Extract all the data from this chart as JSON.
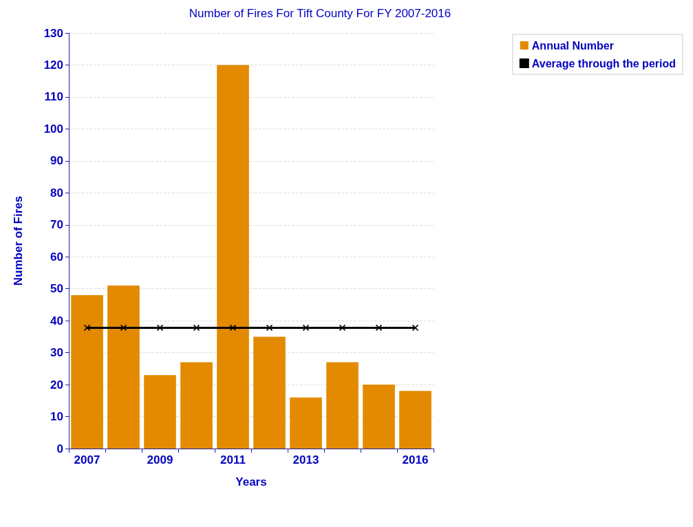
{
  "chart_data": {
    "type": "bar",
    "title": "Number of Fires For Tift County For FY 2007-2016",
    "xlabel": "Years",
    "ylabel": "Number of Fires",
    "categories": [
      "2007",
      null,
      "2009",
      null,
      "2011",
      null,
      "2013",
      null,
      null,
      "2016"
    ],
    "series": [
      {
        "name": "Annual Number",
        "color": "#e38a00",
        "values": [
          48,
          51,
          23,
          27,
          120,
          35,
          16,
          27,
          20,
          18
        ]
      },
      {
        "name": "Average through the period",
        "type": "line",
        "color": "#000000",
        "marker": "cross",
        "values": [
          37.8,
          37.8,
          37.8,
          37.8,
          37.8,
          37.8,
          37.8,
          37.8,
          37.8,
          37.8
        ]
      }
    ],
    "ylim": [
      0,
      130
    ],
    "yticks": [
      0,
      10,
      20,
      30,
      40,
      50,
      60,
      70,
      80,
      90,
      100,
      110,
      120,
      130
    ],
    "grid": "y",
    "legend": "top right"
  }
}
